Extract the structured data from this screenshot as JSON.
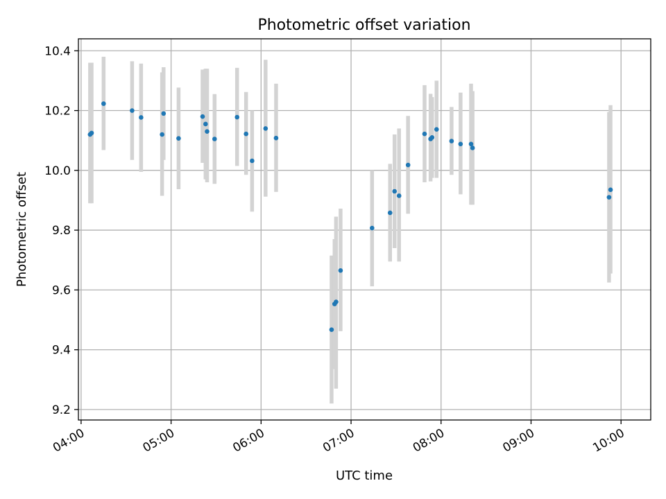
{
  "chart_data": {
    "type": "scatter",
    "title": "Photometric offset variation",
    "xlabel": "UTC time",
    "ylabel": "Photometric offset",
    "xlim_hours": [
      3.97,
      10.33
    ],
    "ylim": [
      9.165,
      10.44
    ],
    "x_ticks": [
      {
        "hour": 4,
        "label": "04:00"
      },
      {
        "hour": 5,
        "label": "05:00"
      },
      {
        "hour": 6,
        "label": "06:00"
      },
      {
        "hour": 7,
        "label": "07:00"
      },
      {
        "hour": 8,
        "label": "08:00"
      },
      {
        "hour": 9,
        "label": "09:00"
      },
      {
        "hour": 10,
        "label": "10:00"
      }
    ],
    "y_ticks": [
      {
        "value": 9.2,
        "label": "9.2"
      },
      {
        "value": 9.4,
        "label": "9.4"
      },
      {
        "value": 9.6,
        "label": "9.6"
      },
      {
        "value": 9.8,
        "label": "9.8"
      },
      {
        "value": 10.0,
        "label": "10.0"
      },
      {
        "value": 10.2,
        "label": "10.2"
      },
      {
        "value": 10.4,
        "label": "10.4"
      }
    ],
    "grid": true,
    "marker_color": "#1f77b4",
    "errorbar_color": "#d3d3d3",
    "points": [
      {
        "t": "04:06",
        "y": 10.12,
        "lo": 9.89,
        "hi": 10.36
      },
      {
        "t": "04:07",
        "y": 10.125,
        "lo": 9.89,
        "hi": 10.36
      },
      {
        "t": "04:15",
        "y": 10.223,
        "lo": 10.068,
        "hi": 10.38
      },
      {
        "t": "04:34",
        "y": 10.2,
        "lo": 10.035,
        "hi": 10.365
      },
      {
        "t": "04:40",
        "y": 10.177,
        "lo": 9.995,
        "hi": 10.357
      },
      {
        "t": "04:54",
        "y": 10.12,
        "lo": 9.915,
        "hi": 10.328
      },
      {
        "t": "04:55",
        "y": 10.19,
        "lo": 10.035,
        "hi": 10.345
      },
      {
        "t": "05:05",
        "y": 10.107,
        "lo": 9.937,
        "hi": 10.277
      },
      {
        "t": "05:21",
        "y": 10.18,
        "lo": 10.025,
        "hi": 10.337
      },
      {
        "t": "05:23",
        "y": 10.155,
        "lo": 9.97,
        "hi": 10.34
      },
      {
        "t": "05:24",
        "y": 10.13,
        "lo": 9.96,
        "hi": 10.34
      },
      {
        "t": "05:29",
        "y": 10.105,
        "lo": 9.955,
        "hi": 10.255
      },
      {
        "t": "05:44",
        "y": 10.178,
        "lo": 10.015,
        "hi": 10.343
      },
      {
        "t": "05:50",
        "y": 10.122,
        "lo": 9.985,
        "hi": 10.262
      },
      {
        "t": "05:54",
        "y": 10.032,
        "lo": 9.862,
        "hi": 10.2
      },
      {
        "t": "06:03",
        "y": 10.14,
        "lo": 9.912,
        "hi": 10.37
      },
      {
        "t": "06:10",
        "y": 10.108,
        "lo": 9.928,
        "hi": 10.29
      },
      {
        "t": "06:47",
        "y": 9.467,
        "lo": 9.22,
        "hi": 9.715
      },
      {
        "t": "06:49",
        "y": 9.553,
        "lo": 9.335,
        "hi": 9.77
      },
      {
        "t": "06:50",
        "y": 9.56,
        "lo": 9.27,
        "hi": 9.845
      },
      {
        "t": "06:53",
        "y": 9.665,
        "lo": 9.462,
        "hi": 9.872
      },
      {
        "t": "07:14",
        "y": 9.807,
        "lo": 9.612,
        "hi": 10.0
      },
      {
        "t": "07:26",
        "y": 9.858,
        "lo": 9.695,
        "hi": 10.022
      },
      {
        "t": "07:29",
        "y": 9.93,
        "lo": 9.74,
        "hi": 10.12
      },
      {
        "t": "07:32",
        "y": 9.915,
        "lo": 9.695,
        "hi": 10.14
      },
      {
        "t": "07:38",
        "y": 10.018,
        "lo": 9.855,
        "hi": 10.182
      },
      {
        "t": "07:49",
        "y": 10.122,
        "lo": 9.96,
        "hi": 10.285
      },
      {
        "t": "07:53",
        "y": 10.105,
        "lo": 9.963,
        "hi": 10.256
      },
      {
        "t": "07:54",
        "y": 10.11,
        "lo": 9.975,
        "hi": 10.245
      },
      {
        "t": "07:57",
        "y": 10.137,
        "lo": 9.975,
        "hi": 10.3
      },
      {
        "t": "08:07",
        "y": 10.098,
        "lo": 9.985,
        "hi": 10.212
      },
      {
        "t": "08:13",
        "y": 10.088,
        "lo": 9.92,
        "hi": 10.26
      },
      {
        "t": "08:20",
        "y": 10.088,
        "lo": 9.885,
        "hi": 10.29
      },
      {
        "t": "08:21",
        "y": 10.075,
        "lo": 9.885,
        "hi": 10.265
      },
      {
        "t": "09:52",
        "y": 9.91,
        "lo": 9.625,
        "hi": 10.195
      },
      {
        "t": "09:53",
        "y": 9.935,
        "lo": 9.655,
        "hi": 10.218
      }
    ]
  }
}
